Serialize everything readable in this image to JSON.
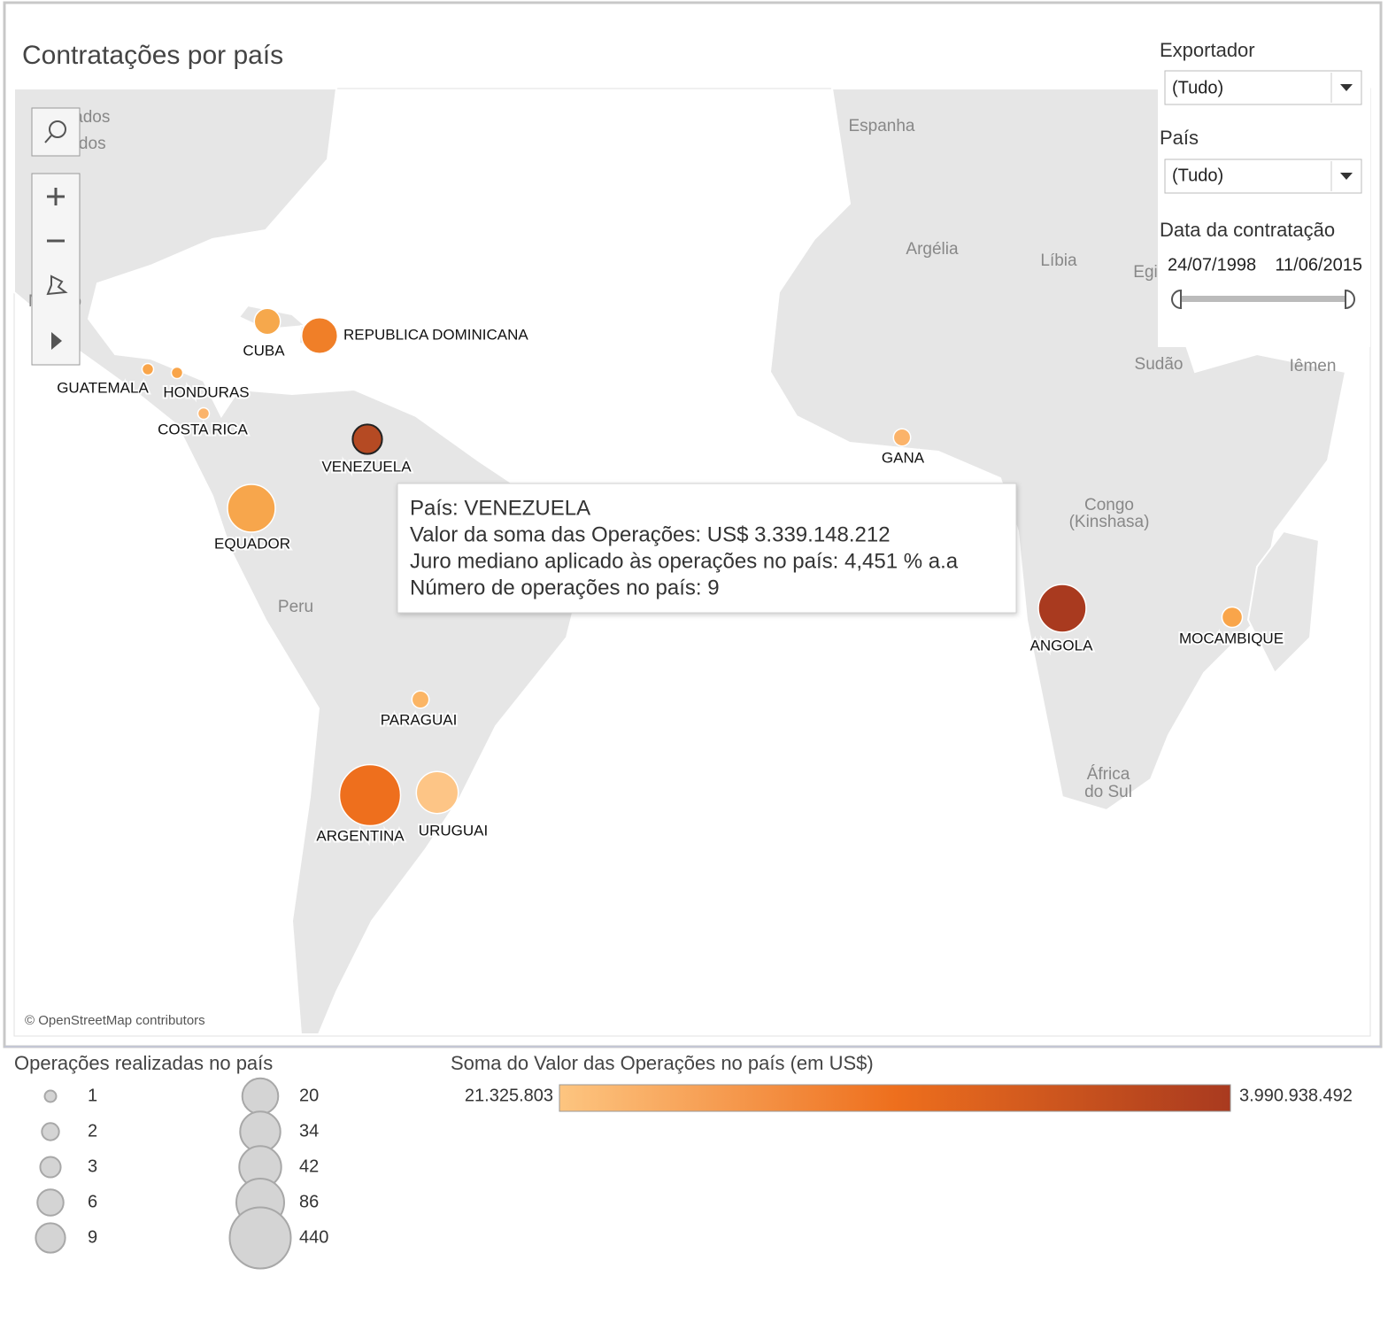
{
  "title": "Contratações por país",
  "filters": {
    "exporter": {
      "label": "Exportador",
      "value": "(Tudo)"
    },
    "country": {
      "label": "País",
      "value": "(Tudo)"
    },
    "date": {
      "label": "Data da contratação",
      "start": "24/07/1998",
      "end": "11/06/2015"
    }
  },
  "map": {
    "labels": [
      "Estados",
      "Unidos",
      "México",
      "Espanha",
      "Argélia",
      "Líbia",
      "Egi",
      "Sudão",
      "Iêmen",
      "Congo",
      "(Kinshasa)",
      "Peru",
      "África",
      "do Sul"
    ],
    "attribution": "© OpenStreetMap contributors",
    "markers": [
      {
        "name": "GUATEMALA",
        "operations": 1,
        "color": "#f9a54a"
      },
      {
        "name": "HONDURAS",
        "operations": 1,
        "color": "#f9a54a"
      },
      {
        "name": "COSTA RICA",
        "operations": 1,
        "color": "#fbb36a"
      },
      {
        "name": "CUBA",
        "operations": 6,
        "color": "#f6a84c"
      },
      {
        "name": "REPUBLICA DOMINICANA",
        "operations": 20,
        "color": "#f07f28"
      },
      {
        "name": "VENEZUELA",
        "operations": 9,
        "color": "#b54a23"
      },
      {
        "name": "EQUADOR",
        "operations": 86,
        "color": "#f7a64c"
      },
      {
        "name": "PARAGUAI",
        "operations": 2,
        "color": "#fbb565"
      },
      {
        "name": "ARGENTINA",
        "operations": 440,
        "color": "#ee6f1d"
      },
      {
        "name": "URUGUAI",
        "operations": 42,
        "color": "#fdc586"
      },
      {
        "name": "GANA",
        "operations": 2,
        "color": "#fbb36a"
      },
      {
        "name": "ANGOLA",
        "operations": 86,
        "color": "#a93a1f"
      },
      {
        "name": "MOCAMBIQUE",
        "operations": 3,
        "color": "#f9a54a"
      }
    ]
  },
  "tooltip": [
    "País: VENEZUELA",
    "Valor da soma das Operações: US$ 3.339.148.212",
    "Juro mediano aplicado às operações no país: 4,451 % a.a",
    "Número de operações no país: 9"
  ],
  "size_legend": {
    "title": "Operações realizadas no país",
    "values": [
      1,
      2,
      3,
      6,
      9,
      20,
      34,
      42,
      86,
      440
    ]
  },
  "color_legend": {
    "title": "Soma do Valor das Operações no país (em US$)",
    "min": {
      "value": 21325803,
      "label": "21.325.803"
    },
    "max": {
      "value": 3990938492,
      "label": "3.990.938.492"
    },
    "colors": [
      "#fdc580",
      "#ee6f1d",
      "#a93a1f"
    ]
  }
}
